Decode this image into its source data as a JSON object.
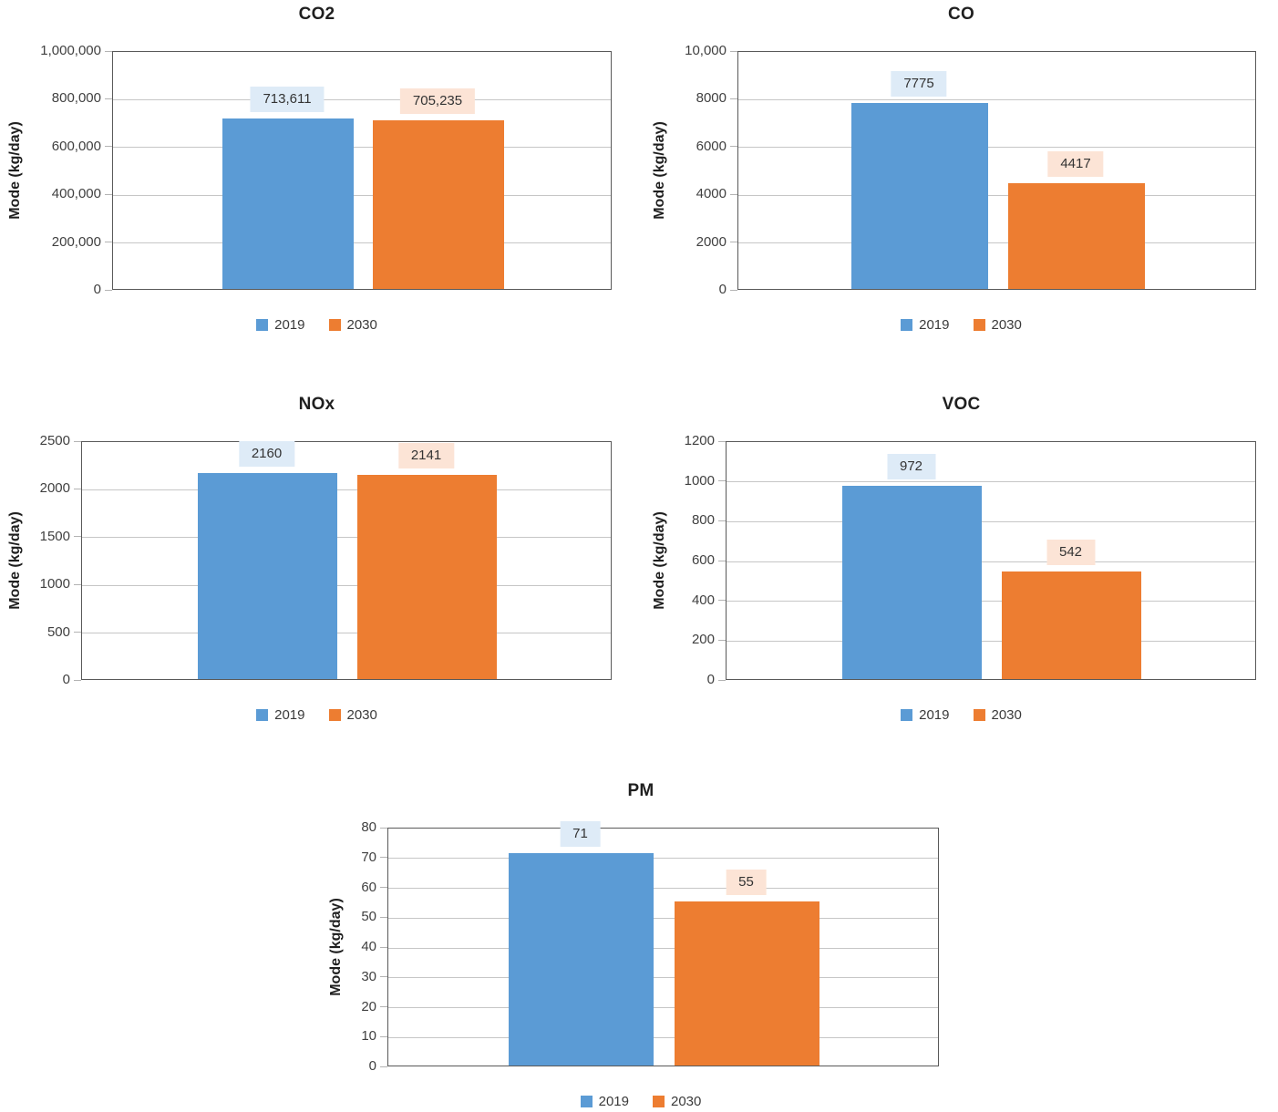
{
  "colors": {
    "series": [
      "#5B9BD5",
      "#ED7D31"
    ],
    "label_bg": [
      "#DEEBF7",
      "#FCE4D6"
    ],
    "grid": "#C6C6C6",
    "plot_border": "#595959",
    "tick_mark": "#B3B3B3",
    "tick_text": "#404040",
    "title_text": "#1F1F1F"
  },
  "legend": {
    "items": [
      {
        "label": "2019",
        "color": "#5B9BD5"
      },
      {
        "label": "2030",
        "color": "#ED7D31"
      }
    ]
  },
  "chart_data": [
    {
      "id": "co2",
      "type": "bar",
      "title": "CO2",
      "xlabel": "",
      "ylabel": "Mode (kg/day)",
      "ylim": [
        0,
        1000000
      ],
      "ytick_step": 200000,
      "ytick_labels": [
        "1,000,000",
        "800,000",
        "600,000",
        "400,000",
        "200,000",
        "0"
      ],
      "categories": [
        "2019",
        "2030"
      ],
      "values": [
        713611,
        705235
      ],
      "value_labels": [
        "713,611",
        "705,235"
      ],
      "legend_position": "bottom",
      "grid": true
    },
    {
      "id": "co",
      "type": "bar",
      "title": "CO",
      "xlabel": "",
      "ylabel": "Mode (kg/day)",
      "ylim": [
        0,
        10000
      ],
      "ytick_step": 2000,
      "ytick_labels": [
        "10,000",
        "8000",
        "6000",
        "4000",
        "2000",
        "0"
      ],
      "categories": [
        "2019",
        "2030"
      ],
      "values": [
        7775,
        4417
      ],
      "value_labels": [
        "7775",
        "4417"
      ],
      "legend_position": "bottom",
      "grid": true
    },
    {
      "id": "nox",
      "type": "bar",
      "title": "NOx",
      "xlabel": "",
      "ylabel": "Mode (kg/day)",
      "ylim": [
        0,
        2500
      ],
      "ytick_step": 500,
      "ytick_labels": [
        "2500",
        "2000",
        "1500",
        "1000",
        "500",
        "0"
      ],
      "categories": [
        "2019",
        "2030"
      ],
      "values": [
        2160,
        2141
      ],
      "value_labels": [
        "2160",
        "2141"
      ],
      "legend_position": "bottom",
      "grid": true
    },
    {
      "id": "voc",
      "type": "bar",
      "title": "VOC",
      "xlabel": "",
      "ylabel": "Mode (kg/day)",
      "ylim": [
        0,
        1200
      ],
      "ytick_step": 200,
      "ytick_labels": [
        "1200",
        "1000",
        "800",
        "600",
        "400",
        "200",
        "0"
      ],
      "categories": [
        "2019",
        "2030"
      ],
      "values": [
        972,
        542
      ],
      "value_labels": [
        "972",
        "542"
      ],
      "legend_position": "bottom",
      "grid": true
    },
    {
      "id": "pm",
      "type": "bar",
      "title": "PM",
      "xlabel": "",
      "ylabel": "Mode (kg/day)",
      "ylim": [
        0,
        80
      ],
      "ytick_step": 10,
      "ytick_labels": [
        "80",
        "70",
        "60",
        "50",
        "40",
        "30",
        "20",
        "10",
        "0"
      ],
      "categories": [
        "2019",
        "2030"
      ],
      "values": [
        71,
        55
      ],
      "value_labels": [
        "71",
        "55"
      ],
      "legend_position": "bottom",
      "grid": true
    }
  ]
}
